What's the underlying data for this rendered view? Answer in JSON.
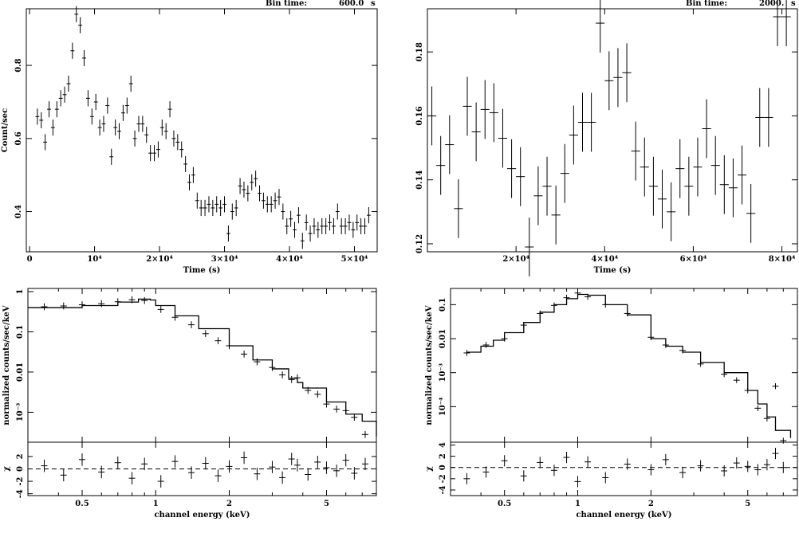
{
  "chart_data": [
    {
      "type": "scatter",
      "panel": "top-left",
      "header": {
        "label": "Bin time:",
        "value": "600.0",
        "unit": "s"
      },
      "xlabel": "Time (s)",
      "ylabel": "Count/sec",
      "xlim": [
        -500,
        53500
      ],
      "ylim": [
        0.29,
        0.955
      ],
      "xticks": [
        {
          "v": 0,
          "t": "0"
        },
        {
          "v": 10000,
          "t": "10⁴"
        },
        {
          "v": 20000,
          "t": "2×10⁴"
        },
        {
          "v": 30000,
          "t": "3×10⁴"
        },
        {
          "v": 40000,
          "t": "4×10⁴"
        },
        {
          "v": 50000,
          "t": "5×10⁴"
        }
      ],
      "yticks": [
        {
          "v": 0.4,
          "t": "0.4"
        },
        {
          "v": 0.6,
          "t": "0.6"
        },
        {
          "v": 0.8,
          "t": "0.8"
        }
      ],
      "xerr": 300,
      "yerr": 0.022,
      "series": [
        {
          "x": [
            1200,
            1800,
            2400,
            3000,
            3600,
            4200,
            4800,
            5400,
            6000,
            6600,
            7200,
            7800,
            8400,
            9000,
            9600,
            10200,
            10800,
            11400,
            12000,
            12600,
            13200,
            13800,
            14400,
            15000,
            15600,
            16200,
            16800,
            17400,
            18000,
            18600,
            19200,
            19800,
            20400,
            21000,
            21600,
            22200,
            22800,
            23400,
            24000,
            24600,
            25200,
            25800,
            26400,
            27000,
            27600,
            28200,
            28800,
            29400,
            30000,
            30600,
            31200,
            31800,
            32400,
            33000,
            33600,
            34200,
            34800,
            35400,
            36000,
            36600,
            37200,
            37800,
            38400,
            39000,
            39600,
            40200,
            40800,
            41400,
            42000,
            42600,
            43200,
            43800,
            44400,
            45000,
            45600,
            46200,
            46800,
            47400,
            48000,
            48600,
            49200,
            49800,
            50400,
            51000,
            51600,
            52200
          ],
          "y": [
            0.66,
            0.65,
            0.59,
            0.68,
            0.63,
            0.68,
            0.71,
            0.72,
            0.75,
            0.84,
            0.94,
            0.91,
            0.82,
            0.71,
            0.66,
            0.7,
            0.63,
            0.64,
            0.69,
            0.55,
            0.63,
            0.62,
            0.67,
            0.69,
            0.75,
            0.6,
            0.64,
            0.64,
            0.61,
            0.56,
            0.56,
            0.57,
            0.63,
            0.62,
            0.68,
            0.6,
            0.59,
            0.57,
            0.53,
            0.48,
            0.5,
            0.43,
            0.41,
            0.41,
            0.42,
            0.41,
            0.42,
            0.41,
            0.42,
            0.34,
            0.4,
            0.41,
            0.47,
            0.46,
            0.45,
            0.48,
            0.49,
            0.45,
            0.43,
            0.42,
            0.42,
            0.43,
            0.44,
            0.4,
            0.36,
            0.38,
            0.35,
            0.39,
            0.32,
            0.37,
            0.34,
            0.36,
            0.35,
            0.36,
            0.36,
            0.37,
            0.36,
            0.4,
            0.36,
            0.36,
            0.37,
            0.35,
            0.37,
            0.36,
            0.36,
            0.39
          ]
        }
      ]
    },
    {
      "type": "scatter",
      "panel": "top-right",
      "header": {
        "label": "Bin time:",
        "value": "2000.",
        "unit": "s"
      },
      "xlabel": "Time (s)",
      "ylabel": "",
      "xlim": [
        0,
        83500
      ],
      "ylim": [
        0.1175,
        0.1935
      ],
      "xticks": [
        {
          "v": 20000,
          "t": "2×10⁴"
        },
        {
          "v": 40000,
          "t": "4×10⁴"
        },
        {
          "v": 60000,
          "t": "6×10⁴"
        },
        {
          "v": 80000,
          "t": "8×10⁴"
        }
      ],
      "yticks": [
        {
          "v": 0.12,
          "t": "0.12"
        },
        {
          "v": 0.14,
          "t": "0.14"
        },
        {
          "v": 0.16,
          "t": "0.16"
        },
        {
          "v": 0.18,
          "t": "0.18"
        }
      ],
      "xerr": 1000,
      "yerr": 0.0092,
      "series": [
        {
          "x": [
            1000,
            3000,
            5000,
            7000,
            9000,
            11000,
            13000,
            15000,
            17000,
            19000,
            21000,
            23000,
            25000,
            27000,
            29000,
            31000,
            33000,
            35000,
            37000,
            39000,
            41000,
            43000,
            45000,
            47000,
            49000,
            51000,
            53000,
            55000,
            57000,
            59000,
            61000,
            63000,
            65000,
            67000,
            69000,
            71000,
            73000,
            75000,
            77000,
            79000,
            81000
          ],
          "y": [
            0.16,
            0.1445,
            0.151,
            0.131,
            0.163,
            0.155,
            0.162,
            0.161,
            0.153,
            0.1435,
            0.141,
            0.119,
            0.135,
            0.138,
            0.129,
            0.142,
            0.154,
            0.158,
            0.158,
            0.189,
            0.171,
            0.172,
            0.1735,
            0.149,
            0.144,
            0.138,
            0.134,
            0.13,
            0.1435,
            0.138,
            0.144,
            0.156,
            0.1445,
            0.1385,
            0.1375,
            0.1415,
            0.1295,
            0.1595,
            0.1595,
            0.191,
            0.191
          ]
        }
      ]
    },
    {
      "type": "line",
      "panel": "bottom-left",
      "ylabel": "normalized counts/sec/keV",
      "resid_ylabel": "χ",
      "xlabel": "channel energy (keV)",
      "xlog": true,
      "ylog": true,
      "xlim": [
        0.3,
        8
      ],
      "ylim": [
        0.00018,
        1.2
      ],
      "xticks": [
        {
          "v": 0.5,
          "t": "0.5"
        },
        {
          "v": 1,
          "t": "1"
        },
        {
          "v": 2,
          "t": "2"
        },
        {
          "v": 5,
          "t": "5"
        }
      ],
      "yticks": [
        {
          "v": 1,
          "t": "1"
        },
        {
          "v": 0.1,
          "t": "0.1"
        },
        {
          "v": 0.01,
          "t": "0.01"
        },
        {
          "v": 0.001,
          "t": "10⁻³"
        }
      ],
      "resid_ylim": [
        -4.3,
        4.3
      ],
      "resid_yticks": [
        {
          "v": 2,
          "t": "2"
        },
        {
          "v": 0,
          "t": "0"
        },
        {
          "v": -2,
          "t": "-2"
        },
        {
          "v": -4,
          "t": "-4"
        }
      ],
      "model": {
        "x": [
          0.3,
          0.5,
          0.7,
          0.85,
          0.95,
          1.0,
          1.2,
          1.5,
          2.0,
          2.5,
          3.0,
          3.5,
          3.8,
          4.0,
          5.0,
          6.0,
          7.0,
          8.0
        ],
        "y": [
          0.4,
          0.45,
          0.55,
          0.65,
          0.62,
          0.45,
          0.25,
          0.12,
          0.045,
          0.02,
          0.012,
          0.007,
          0.0055,
          0.004,
          0.0018,
          0.0009,
          0.0006,
          0.00025
        ]
      },
      "data": {
        "x": [
          0.35,
          0.42,
          0.5,
          0.6,
          0.7,
          0.8,
          0.9,
          1.05,
          1.2,
          1.4,
          1.6,
          1.8,
          2.0,
          2.3,
          2.6,
          3.0,
          3.3,
          3.6,
          3.8,
          4.2,
          4.6,
          5.0,
          5.5,
          6.0,
          6.5,
          7.2
        ],
        "y": [
          0.42,
          0.44,
          0.47,
          0.5,
          0.56,
          0.63,
          0.6,
          0.36,
          0.23,
          0.15,
          0.09,
          0.06,
          0.045,
          0.028,
          0.018,
          0.013,
          0.0085,
          0.0065,
          0.0072,
          0.0035,
          0.0028,
          0.0016,
          0.0012,
          0.0011,
          0.00075,
          0.00028
        ],
        "resid": [
          0.5,
          -1.0,
          1.5,
          -0.5,
          1.0,
          -1.5,
          0.8,
          -2.0,
          1.2,
          -0.6,
          0.9,
          -1.1,
          0.4,
          1.8,
          -0.8,
          0.3,
          -1.4,
          1.6,
          0.6,
          -0.9,
          1.1,
          0.2,
          -0.3,
          1.4,
          -0.7,
          0.8
        ]
      }
    },
    {
      "type": "line",
      "panel": "bottom-right",
      "ylabel": "normalized counts/sec/keV",
      "resid_ylabel": "χ",
      "xlabel": "channel energy (keV)",
      "xlog": true,
      "ylog": true,
      "xlim": [
        0.3,
        8
      ],
      "ylim": [
        9e-06,
        0.3
      ],
      "xticks": [
        {
          "v": 0.5,
          "t": "0.5"
        },
        {
          "v": 1,
          "t": "1"
        },
        {
          "v": 2,
          "t": "2"
        },
        {
          "v": 5,
          "t": "5"
        }
      ],
      "yticks": [
        {
          "v": 0.1,
          "t": "0.1"
        },
        {
          "v": 0.01,
          "t": "0.01"
        },
        {
          "v": 0.001,
          "t": "10⁻³"
        },
        {
          "v": 0.0001,
          "t": "10⁻⁴"
        }
      ],
      "resid_ylim": [
        -5,
        4.5
      ],
      "resid_yticks": [
        {
          "v": 4,
          "t": "4"
        },
        {
          "v": 2,
          "t": "2"
        },
        {
          "v": 0,
          "t": "0"
        },
        {
          "v": -2,
          "t": "-2"
        },
        {
          "v": -4,
          "t": "-4"
        }
      ],
      "model": {
        "x": [
          0.35,
          0.4,
          0.45,
          0.5,
          0.6,
          0.7,
          0.8,
          0.9,
          1.0,
          1.1,
          1.3,
          1.6,
          2.0,
          2.3,
          2.7,
          3.2,
          4.0,
          5.0,
          5.5,
          6.0,
          6.5,
          7.5
        ],
        "y": [
          0.004,
          0.006,
          0.009,
          0.015,
          0.03,
          0.06,
          0.1,
          0.15,
          0.2,
          0.19,
          0.1,
          0.05,
          0.01,
          0.006,
          0.004,
          0.002,
          0.001,
          0.0003,
          0.00012,
          5e-05,
          2e-05,
          1.2e-05
        ]
      },
      "data": {
        "x": [
          0.35,
          0.42,
          0.5,
          0.6,
          0.7,
          0.8,
          0.9,
          1.0,
          1.1,
          1.3,
          1.6,
          2.0,
          2.3,
          2.7,
          3.2,
          4.0,
          4.5,
          5.0,
          5.5,
          6.0,
          6.5,
          7.0
        ],
        "y": [
          0.0038,
          0.0065,
          0.01,
          0.025,
          0.055,
          0.095,
          0.16,
          0.22,
          0.17,
          0.1,
          0.055,
          0.011,
          0.0065,
          0.0045,
          0.0018,
          0.0009,
          0.0006,
          0.0003,
          9e-05,
          4.5e-05,
          0.0004,
          1e-05
        ],
        "resid": [
          -2.0,
          -0.8,
          1.2,
          -1.5,
          0.9,
          -0.5,
          1.8,
          -2.5,
          1.0,
          -1.8,
          0.6,
          -0.4,
          1.4,
          -0.9,
          0.3,
          -0.6,
          0.8,
          0.2,
          -0.4,
          0.5,
          2.5,
          0.0
        ]
      }
    }
  ]
}
